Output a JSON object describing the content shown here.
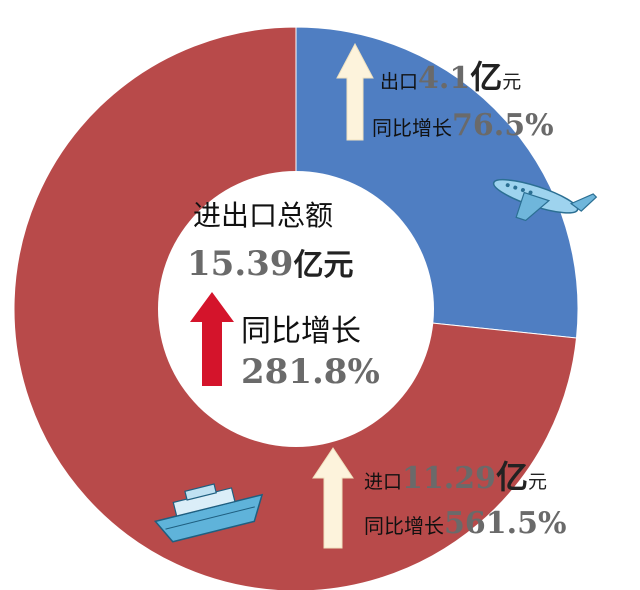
{
  "colors": {
    "import": "#b84a4a",
    "export": "#4f7ec2",
    "up_arrow_light": "#fdf3dc",
    "up_arrow_red": "#d4142b"
  },
  "icons": {
    "plane": "airplane-icon",
    "ship": "ship-icon"
  },
  "chart_data": {
    "type": "pie",
    "donut": true,
    "slices": [
      {
        "name": "出口",
        "value": 4.1,
        "unit": "亿元",
        "growth_label": "同比增长",
        "growth": "76.5%"
      },
      {
        "name": "进口",
        "value": 11.29,
        "unit": "亿元",
        "growth_label": "同比增长",
        "growth": "561.5%"
      }
    ],
    "center": {
      "title": "进出口总额",
      "total": "15.39",
      "unit": "亿元",
      "growth_label": "同比增长",
      "growth": "281.8%"
    }
  }
}
